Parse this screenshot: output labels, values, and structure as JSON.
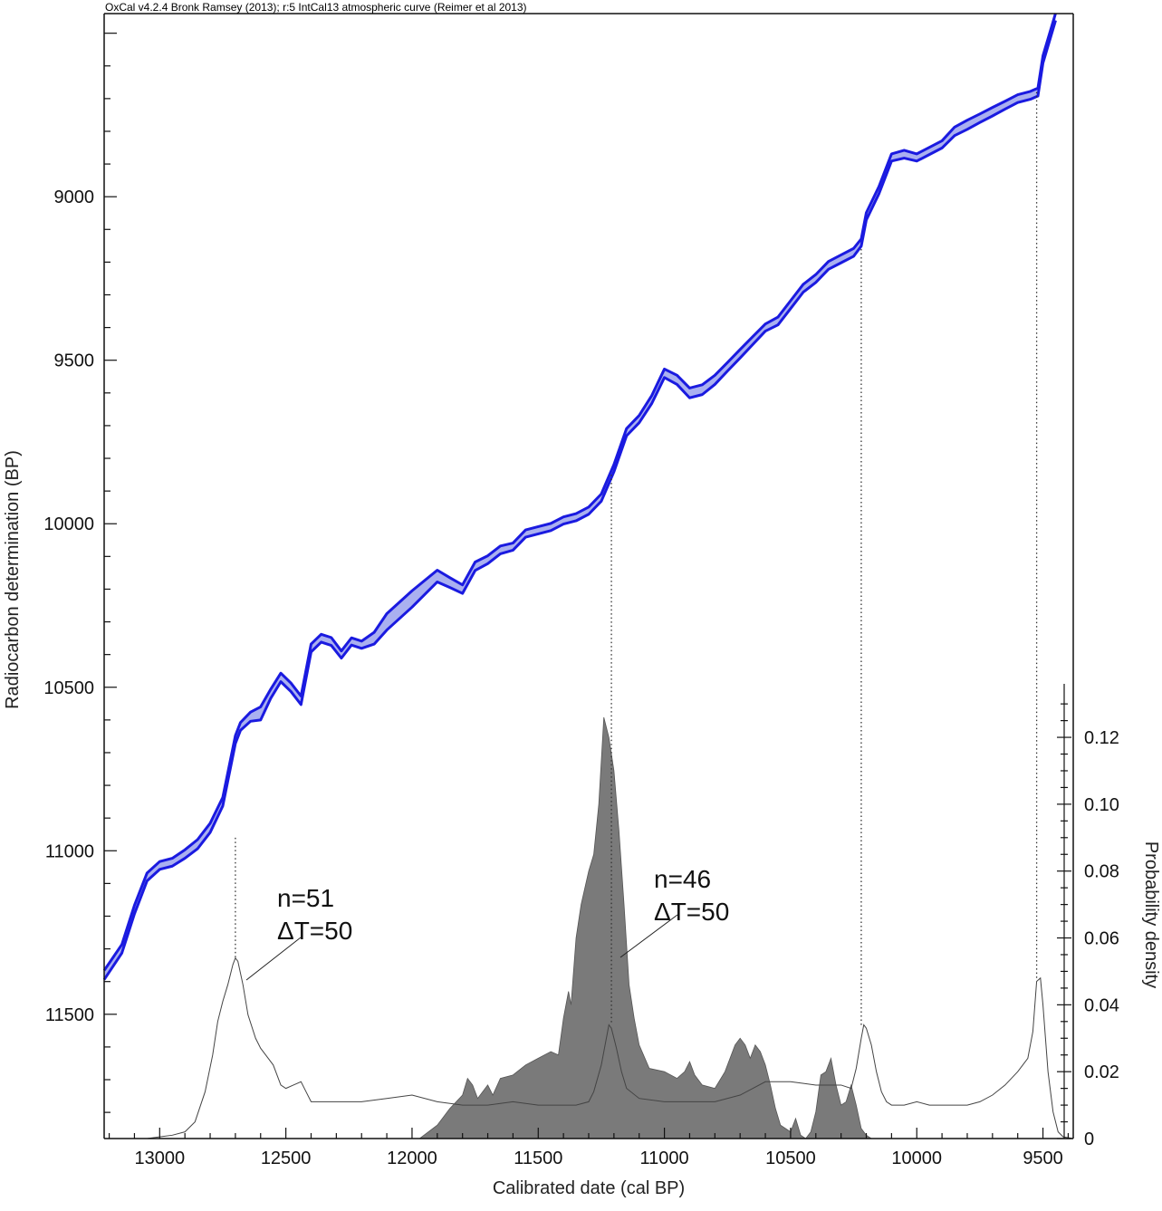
{
  "header": "OxCal v4.2.4 Bronk Ramsey (2013); r:5 IntCal13 atmospheric curve (Reimer et al 2013)",
  "chart_data": {
    "type": "area",
    "xlabel": "Calibrated date (cal BP)",
    "ylabel": "Radiocarbon determination (BP)",
    "y2label": "Probability density",
    "xlim": [
      13220,
      9380
    ],
    "ylim": [
      8440,
      11880
    ],
    "y2lim": [
      0,
      0.136
    ],
    "x_ticks": [
      13000,
      12500,
      12000,
      11500,
      11000,
      10500,
      10000,
      9500
    ],
    "y_ticks": [
      9000,
      9500,
      10000,
      10500,
      11000,
      11500
    ],
    "y2_ticks": [
      0,
      0.02,
      0.04,
      0.06,
      0.08,
      0.1,
      0.12
    ],
    "y2_tick_labels": [
      "0",
      "0.02",
      "0.04",
      "0.06",
      "0.08",
      "0.10",
      "0.12"
    ],
    "colors": {
      "curve_fill": "#aab0f0",
      "curve_line": "#1a1ae0",
      "filled_density": "#7a7a7a",
      "outline_density": "#444444"
    },
    "calibration_curve": {
      "x": [
        13220,
        13150,
        13100,
        13050,
        13000,
        12950,
        12900,
        12850,
        12800,
        12750,
        12700,
        12680,
        12640,
        12600,
        12560,
        12520,
        12480,
        12440,
        12400,
        12360,
        12320,
        12280,
        12240,
        12200,
        12150,
        12100,
        12000,
        11900,
        11850,
        11800,
        11750,
        11700,
        11650,
        11600,
        11550,
        11500,
        11450,
        11400,
        11350,
        11300,
        11250,
        11200,
        11150,
        11100,
        11050,
        11000,
        10950,
        10900,
        10850,
        10800,
        10750,
        10700,
        10650,
        10600,
        10550,
        10500,
        10450,
        10400,
        10350,
        10300,
        10250,
        10220,
        10200,
        10150,
        10100,
        10050,
        10000,
        9950,
        9900,
        9850,
        9800,
        9750,
        9700,
        9650,
        9600,
        9550,
        9520,
        9500,
        9450
      ],
      "y": [
        11380,
        11300,
        11180,
        11080,
        11045,
        11035,
        11010,
        10980,
        10930,
        10850,
        10660,
        10620,
        10590,
        10580,
        10520,
        10470,
        10500,
        10540,
        10380,
        10350,
        10360,
        10400,
        10360,
        10370,
        10350,
        10300,
        10230,
        10160,
        10180,
        10200,
        10130,
        10110,
        10080,
        10070,
        10030,
        10020,
        10010,
        9990,
        9980,
        9960,
        9920,
        9830,
        9720,
        9680,
        9620,
        9540,
        9560,
        9600,
        9590,
        9560,
        9520,
        9480,
        9440,
        9400,
        9380,
        9330,
        9280,
        9250,
        9210,
        9190,
        9170,
        9140,
        9060,
        8980,
        8880,
        8870,
        8880,
        8860,
        8840,
        8800,
        8780,
        8760,
        8740,
        8720,
        8700,
        8690,
        8680,
        8580,
        8450
      ],
      "width": [
        28,
        26,
        26,
        24,
        24,
        24,
        26,
        28,
        28,
        26,
        24,
        24,
        28,
        40,
        28,
        26,
        26,
        26,
        24,
        24,
        24,
        22,
        22,
        22,
        36,
        50,
        50,
        36,
        30,
        26,
        26,
        24,
        24,
        22,
        22,
        22,
        22,
        22,
        22,
        22,
        22,
        22,
        22,
        22,
        24,
        26,
        28,
        30,
        30,
        28,
        26,
        26,
        24,
        22,
        24,
        24,
        24,
        24,
        24,
        24,
        24,
        22,
        22,
        22,
        22,
        24,
        22,
        22,
        22,
        26,
        28,
        26,
        26,
        24,
        24,
        24,
        24,
        22,
        22
      ]
    },
    "series": [
      {
        "name": "n=46 ΔT=50",
        "x": [
          13220,
          11970,
          11900,
          11850,
          11800,
          11780,
          11760,
          11740,
          11700,
          11680,
          11650,
          11600,
          11550,
          11500,
          11450,
          11420,
          11400,
          11380,
          11370,
          11350,
          11330,
          11300,
          11280,
          11260,
          11240,
          11220,
          11200,
          11180,
          11160,
          11150,
          11140,
          11120,
          11100,
          11060,
          11000,
          10950,
          10920,
          10900,
          10880,
          10850,
          10800,
          10760,
          10720,
          10700,
          10680,
          10660,
          10640,
          10620,
          10600,
          10580,
          10560,
          10540,
          10500,
          10480,
          10460,
          10440,
          10420,
          10400,
          10380,
          10360,
          10340,
          10320,
          10300,
          10280,
          10260,
          10240,
          10220,
          10200,
          10180,
          9380
        ],
        "y": [
          0,
          0,
          0.004,
          0.009,
          0.013,
          0.018,
          0.016,
          0.012,
          0.016,
          0.013,
          0.018,
          0.019,
          0.022,
          0.024,
          0.026,
          0.025,
          0.036,
          0.044,
          0.04,
          0.06,
          0.07,
          0.08,
          0.085,
          0.1,
          0.126,
          0.12,
          0.11,
          0.092,
          0.07,
          0.058,
          0.046,
          0.036,
          0.028,
          0.021,
          0.02,
          0.018,
          0.02,
          0.023,
          0.019,
          0.016,
          0.015,
          0.02,
          0.028,
          0.03,
          0.028,
          0.024,
          0.028,
          0.026,
          0.022,
          0.016,
          0.009,
          0.004,
          0.002,
          0.006,
          0.001,
          0.0,
          0.002,
          0.008,
          0.019,
          0.02,
          0.024,
          0.016,
          0.01,
          0.011,
          0.016,
          0.01,
          0.003,
          0.001,
          0,
          0
        ]
      },
      {
        "name": "n=51 ΔT=50",
        "x": [
          13220,
          13050,
          13000,
          12950,
          12900,
          12860,
          12820,
          12790,
          12770,
          12750,
          12730,
          12710,
          12700,
          12690,
          12670,
          12650,
          12620,
          12600,
          12580,
          12550,
          12520,
          12500,
          12470,
          12440,
          12420,
          12400,
          12350,
          12300,
          12200,
          12100,
          12000,
          11900,
          11800,
          11700,
          11600,
          11500,
          11400,
          11350,
          11300,
          11280,
          11250,
          11230,
          11220,
          11210,
          11190,
          11170,
          11150,
          11100,
          11000,
          10900,
          10800,
          10700,
          10650,
          10600,
          10500,
          10400,
          10300,
          10260,
          10240,
          10220,
          10210,
          10200,
          10180,
          10160,
          10140,
          10120,
          10100,
          10050,
          10000,
          9950,
          9900,
          9850,
          9800,
          9750,
          9700,
          9650,
          9600,
          9580,
          9560,
          9540,
          9525,
          9510,
          9500,
          9480,
          9460,
          9440,
          9420,
          9380
        ],
        "y": [
          0,
          0.0,
          0.0005,
          0.001,
          0.002,
          0.005,
          0.014,
          0.025,
          0.035,
          0.041,
          0.046,
          0.052,
          0.054,
          0.053,
          0.046,
          0.037,
          0.03,
          0.027,
          0.025,
          0.022,
          0.016,
          0.015,
          0.016,
          0.017,
          0.014,
          0.011,
          0.011,
          0.011,
          0.011,
          0.012,
          0.013,
          0.011,
          0.01,
          0.01,
          0.011,
          0.01,
          0.01,
          0.01,
          0.011,
          0.014,
          0.022,
          0.03,
          0.034,
          0.033,
          0.027,
          0.02,
          0.015,
          0.012,
          0.011,
          0.011,
          0.011,
          0.013,
          0.015,
          0.017,
          0.017,
          0.016,
          0.016,
          0.015,
          0.021,
          0.03,
          0.034,
          0.033,
          0.028,
          0.02,
          0.014,
          0.011,
          0.01,
          0.01,
          0.011,
          0.01,
          0.01,
          0.01,
          0.01,
          0.011,
          0.013,
          0.016,
          0.02,
          0.022,
          0.024,
          0.032,
          0.047,
          0.048,
          0.04,
          0.02,
          0.008,
          0.002,
          0.0005,
          0
        ]
      }
    ],
    "dotted_lines": [
      {
        "x": 12700,
        "y_top": 10960,
        "density": 0.054
      },
      {
        "x": 11210,
        "y_top": 9850,
        "density": 0.034
      },
      {
        "x": 10220,
        "y_top": 9160,
        "density": 0.034
      },
      {
        "x": 9525,
        "y_top": 8680,
        "density": 0.048
      }
    ],
    "annotations": [
      {
        "line1": "n=51",
        "line2": "ΔT=50"
      },
      {
        "line1": "n=46",
        "line2": "ΔT=50"
      }
    ]
  }
}
